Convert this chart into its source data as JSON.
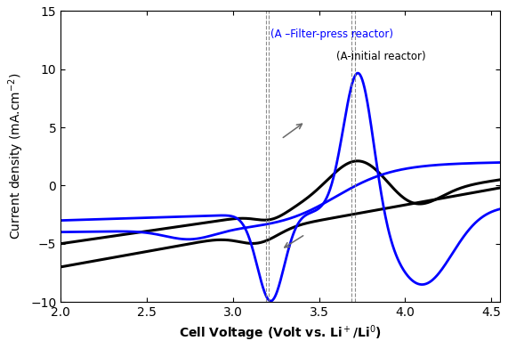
{
  "xlim": [
    2.0,
    4.55
  ],
  "ylim": [
    -10,
    15
  ],
  "xlabel": "Cell Voltage (Volt vs. Li$^+$/Li$^0$)",
  "ylabel": "Current density (mA.cm$^{-2}$)",
  "xticks": [
    2.0,
    2.5,
    3.0,
    3.5,
    4.0,
    4.5
  ],
  "yticks": [
    -10,
    -5,
    0,
    5,
    10,
    15
  ],
  "vlines": [
    3.2,
    3.7
  ],
  "label_blue": "(A –Filter-press reactor)",
  "label_black": "(A-initial reactor)",
  "figsize": [
    5.71,
    3.92
  ],
  "dpi": 100
}
